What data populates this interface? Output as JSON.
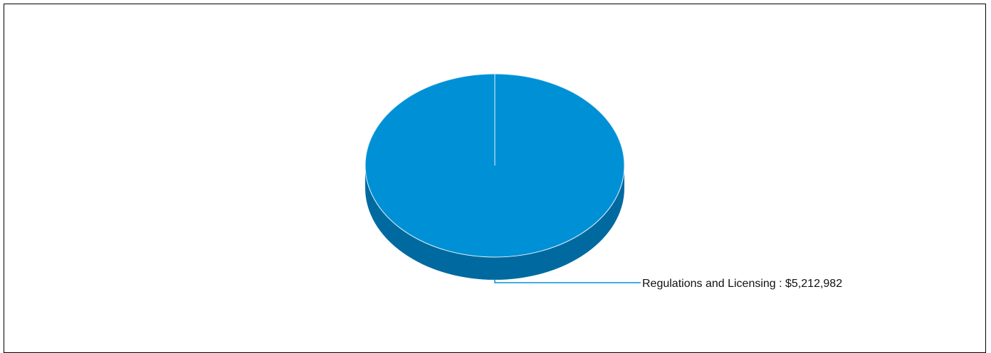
{
  "chart_data": {
    "type": "pie",
    "style": "3d",
    "slices": [
      {
        "label": "Regulations and Licensing",
        "value": 5212982,
        "display": "Regulations and Licensing : $5,212,982"
      }
    ],
    "colors": {
      "top": "#0090d5",
      "side": "#006aa0",
      "leader_line": "#0090d5",
      "edge": "#e6f4fb"
    }
  }
}
